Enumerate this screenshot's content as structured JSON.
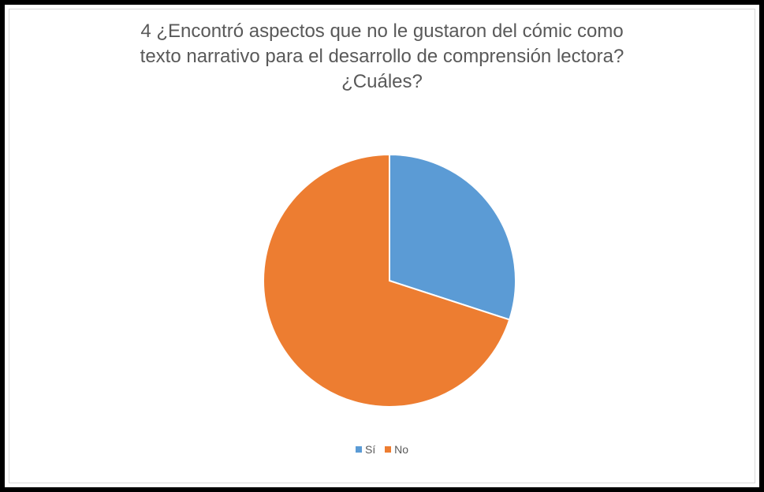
{
  "chart_data": {
    "type": "pie",
    "title": "4 ¿Encontró aspectos que no le gustaron del cómic como texto narrativo para el desarrollo de comprensión lectora? ¿Cuáles?",
    "title_lines": [
      "4 ¿Encontró aspectos que no le gustaron del cómic como",
      "texto narrativo para el desarrollo de comprensión lectora?",
      "¿Cuáles?"
    ],
    "categories": [
      "Sí",
      "No"
    ],
    "values": [
      30,
      70
    ],
    "colors": [
      "#5b9bd5",
      "#ed7d31"
    ],
    "legend_position": "bottom",
    "grid": false
  }
}
